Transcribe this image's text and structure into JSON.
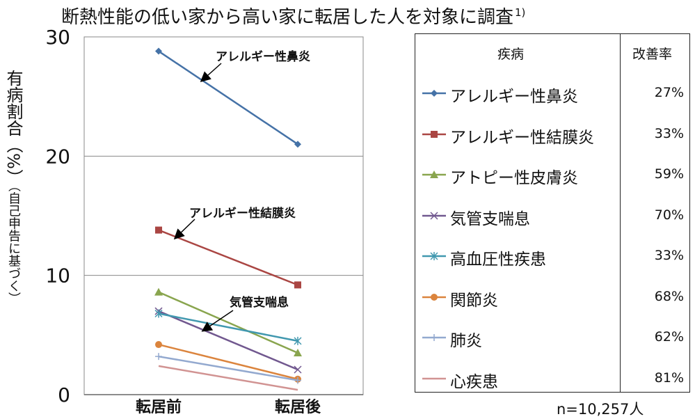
{
  "title": "断熱性能の低い家から高い家に転居した人を対象に調査",
  "title_sup": "1)",
  "ylabel_main": "有病割合（%）",
  "ylabel_sub": "（自己申告に基づく）",
  "note": "n=10,257人",
  "legend": {
    "header_disease": "疾病",
    "header_rate": "改善率",
    "rows": [
      {
        "name": "アレルギー性鼻炎",
        "rate": "27%",
        "color": "#4572A7",
        "marker": "diamond"
      },
      {
        "name": "アレルギー性結膜炎",
        "rate": "33%",
        "color": "#AA4643",
        "marker": "square"
      },
      {
        "name": "アトピー性皮膚炎",
        "rate": "59%",
        "color": "#89A54E",
        "marker": "triangle"
      },
      {
        "name": "気管支喘息",
        "rate": "70%",
        "color": "#71588F",
        "marker": "x"
      },
      {
        "name": "高血圧性疾患",
        "rate": "33%",
        "color": "#4198AF",
        "marker": "star"
      },
      {
        "name": "関節炎",
        "rate": "68%",
        "color": "#DB843D",
        "marker": "circle"
      },
      {
        "name": "肺炎",
        "rate": "62%",
        "color": "#93A9CF",
        "marker": "plus"
      },
      {
        "name": "心疾患",
        "rate": "81%",
        "color": "#D19392",
        "marker": "none"
      }
    ]
  },
  "chart_data": {
    "type": "line",
    "categories": [
      "転居前",
      "転居後"
    ],
    "ylim": [
      0,
      30
    ],
    "yticks": [
      "0",
      "10",
      "20",
      "30"
    ],
    "grid": true,
    "series": [
      {
        "name": "アレルギー性鼻炎",
        "values": [
          28.8,
          21.0
        ]
      },
      {
        "name": "アレルギー性結膜炎",
        "values": [
          13.8,
          9.2
        ]
      },
      {
        "name": "アトピー性皮膚炎",
        "values": [
          8.6,
          3.5
        ]
      },
      {
        "name": "気管支喘息",
        "values": [
          7.0,
          2.1
        ]
      },
      {
        "name": "高血圧性疾患",
        "values": [
          6.8,
          4.5
        ]
      },
      {
        "name": "関節炎",
        "values": [
          4.2,
          1.3
        ]
      },
      {
        "name": "肺炎",
        "values": [
          3.2,
          1.2
        ]
      },
      {
        "name": "心疾患",
        "values": [
          2.4,
          0.4
        ]
      }
    ],
    "annotations": [
      {
        "text": "アレルギー性鼻炎",
        "series": 0
      },
      {
        "text": "アレルギー性結膜炎",
        "series": 1
      },
      {
        "text": "気管支喘息",
        "series": 3
      }
    ]
  }
}
